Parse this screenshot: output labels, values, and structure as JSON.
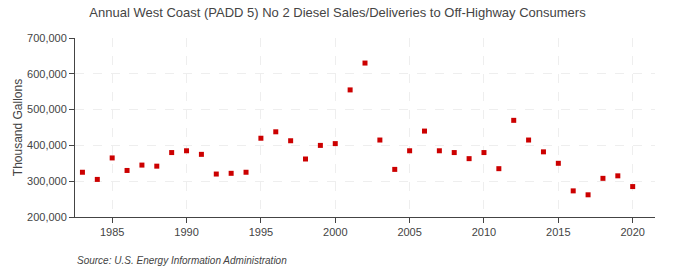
{
  "chart_data": {
    "type": "scatter",
    "title": "Annual West Coast (PADD 5) No 2 Diesel Sales/Deliveries to Off-Highway Consumers",
    "ylabel": "Thousand Gallons",
    "annotations": [
      "Source: U.S. Energy Information Administration"
    ],
    "x": [
      1983,
      1984,
      1985,
      1986,
      1987,
      1988,
      1989,
      1990,
      1991,
      1992,
      1993,
      1994,
      1995,
      1996,
      1997,
      1998,
      1999,
      2000,
      2001,
      2002,
      2003,
      2004,
      2005,
      2006,
      2007,
      2008,
      2009,
      2010,
      2011,
      2012,
      2013,
      2014,
      2015,
      2016,
      2017,
      2018,
      2019,
      2020
    ],
    "values": [
      325000,
      305000,
      365000,
      330000,
      345000,
      342000,
      380000,
      385000,
      375000,
      320000,
      322000,
      325000,
      420000,
      438000,
      413000,
      362000,
      400000,
      405000,
      555000,
      630000,
      415000,
      333000,
      385000,
      440000,
      385000,
      380000,
      363000,
      380000,
      335000,
      470000,
      415000,
      382000,
      350000,
      273000,
      262000,
      308000,
      315000,
      285000
    ],
    "color": "#cc0000",
    "marker": "square",
    "xlim": [
      1982.5,
      2021.5
    ],
    "xticks": [
      1985,
      1990,
      1995,
      2000,
      2005,
      2010,
      2015,
      2020
    ],
    "ylim": [
      200000,
      700000
    ],
    "yticks": [
      {
        "value": 200000,
        "label": "200,000"
      },
      {
        "value": 300000,
        "label": "300,000"
      },
      {
        "value": 400000,
        "label": "400,000"
      },
      {
        "value": 500000,
        "label": "500,000"
      },
      {
        "value": 600000,
        "label": "600,000"
      },
      {
        "value": 700000,
        "label": "700,000"
      }
    ],
    "grid": true
  }
}
